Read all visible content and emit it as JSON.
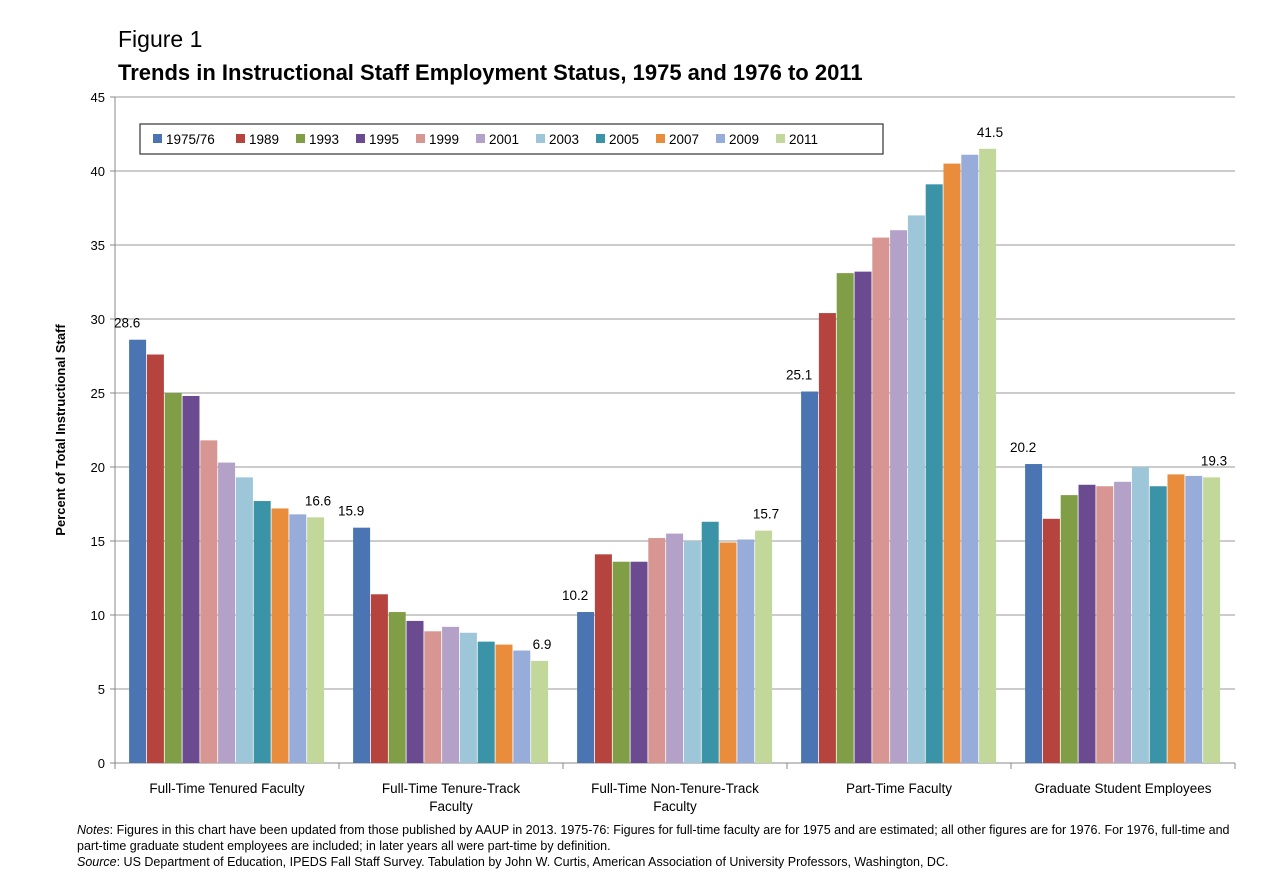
{
  "figure_label": "Figure 1",
  "notes": {
    "notes_label": "Notes",
    "notes_text": ": Figures in this chart have been updated from those published by AAUP in 2013. 1975-76: Figures for full-time faculty are for 1975 and are estimated; all other figures are for 1976. For 1976, full-time and part-time graduate student employees are included; in later years all were part-time by definition.",
    "source_label": "Source",
    "source_text": ": US Department of Education, IPEDS Fall Staff Survey. Tabulation by John W. Curtis, American Association of University Professors, Washington, DC."
  },
  "chart_data": {
    "type": "bar",
    "title": "Trends in Instructional Staff Employment Status, 1975 and 1976 to 2011",
    "xlabel": "",
    "ylabel": "Percent of Total Instructional Staff",
    "ylim": [
      0,
      45
    ],
    "yticks": [
      0,
      5,
      10,
      15,
      20,
      25,
      30,
      35,
      40,
      45
    ],
    "grid": true,
    "legend_position": "top-left",
    "categories": [
      [
        "Full-Time Tenured Faculty"
      ],
      [
        "Full-Time Tenure-Track",
        "Faculty"
      ],
      [
        "Full-Time Non-Tenure-Track",
        "Faculty"
      ],
      [
        "Part-Time Faculty"
      ],
      [
        "Graduate Student Employees"
      ]
    ],
    "series": [
      {
        "name": "1975/76",
        "color": "#4a74b2",
        "values": [
          28.6,
          15.9,
          10.2,
          25.1,
          20.2
        ]
      },
      {
        "name": "1989",
        "color": "#b5443f",
        "values": [
          27.6,
          11.4,
          14.1,
          30.4,
          16.5
        ]
      },
      {
        "name": "1993",
        "color": "#7f9e46",
        "values": [
          25.0,
          10.2,
          13.6,
          33.1,
          18.1
        ]
      },
      {
        "name": "1995",
        "color": "#6b4b8f",
        "values": [
          24.8,
          9.6,
          13.6,
          33.2,
          18.8
        ]
      },
      {
        "name": "1999",
        "color": "#d79692",
        "values": [
          21.8,
          8.9,
          15.2,
          35.5,
          18.7
        ]
      },
      {
        "name": "2001",
        "color": "#b3a1c7",
        "values": [
          20.3,
          9.2,
          15.5,
          36.0,
          19.0
        ]
      },
      {
        "name": "2003",
        "color": "#9dc6d9",
        "values": [
          19.3,
          8.8,
          15.0,
          37.0,
          20.0
        ]
      },
      {
        "name": "2005",
        "color": "#3b93a8",
        "values": [
          17.7,
          8.2,
          16.3,
          39.1,
          18.7
        ]
      },
      {
        "name": "2007",
        "color": "#e98c3c",
        "values": [
          17.2,
          8.0,
          14.9,
          40.5,
          19.5
        ]
      },
      {
        "name": "2009",
        "color": "#97acd8",
        "values": [
          16.8,
          7.6,
          15.1,
          41.1,
          19.4
        ]
      },
      {
        "name": "2011",
        "color": "#c2d89a",
        "values": [
          16.6,
          6.9,
          15.7,
          41.5,
          19.3
        ]
      }
    ],
    "data_labels": [
      {
        "category": 0,
        "series": 0,
        "text": "28.6"
      },
      {
        "category": 0,
        "series": 10,
        "text": "16.6"
      },
      {
        "category": 1,
        "series": 0,
        "text": "15.9"
      },
      {
        "category": 1,
        "series": 10,
        "text": "6.9"
      },
      {
        "category": 2,
        "series": 0,
        "text": "10.2"
      },
      {
        "category": 2,
        "series": 10,
        "text": "15.7"
      },
      {
        "category": 3,
        "series": 0,
        "text": "25.1"
      },
      {
        "category": 3,
        "series": 10,
        "text": "41.5"
      },
      {
        "category": 4,
        "series": 0,
        "text": "20.2"
      },
      {
        "category": 4,
        "series": 10,
        "text": "19.3"
      }
    ]
  }
}
